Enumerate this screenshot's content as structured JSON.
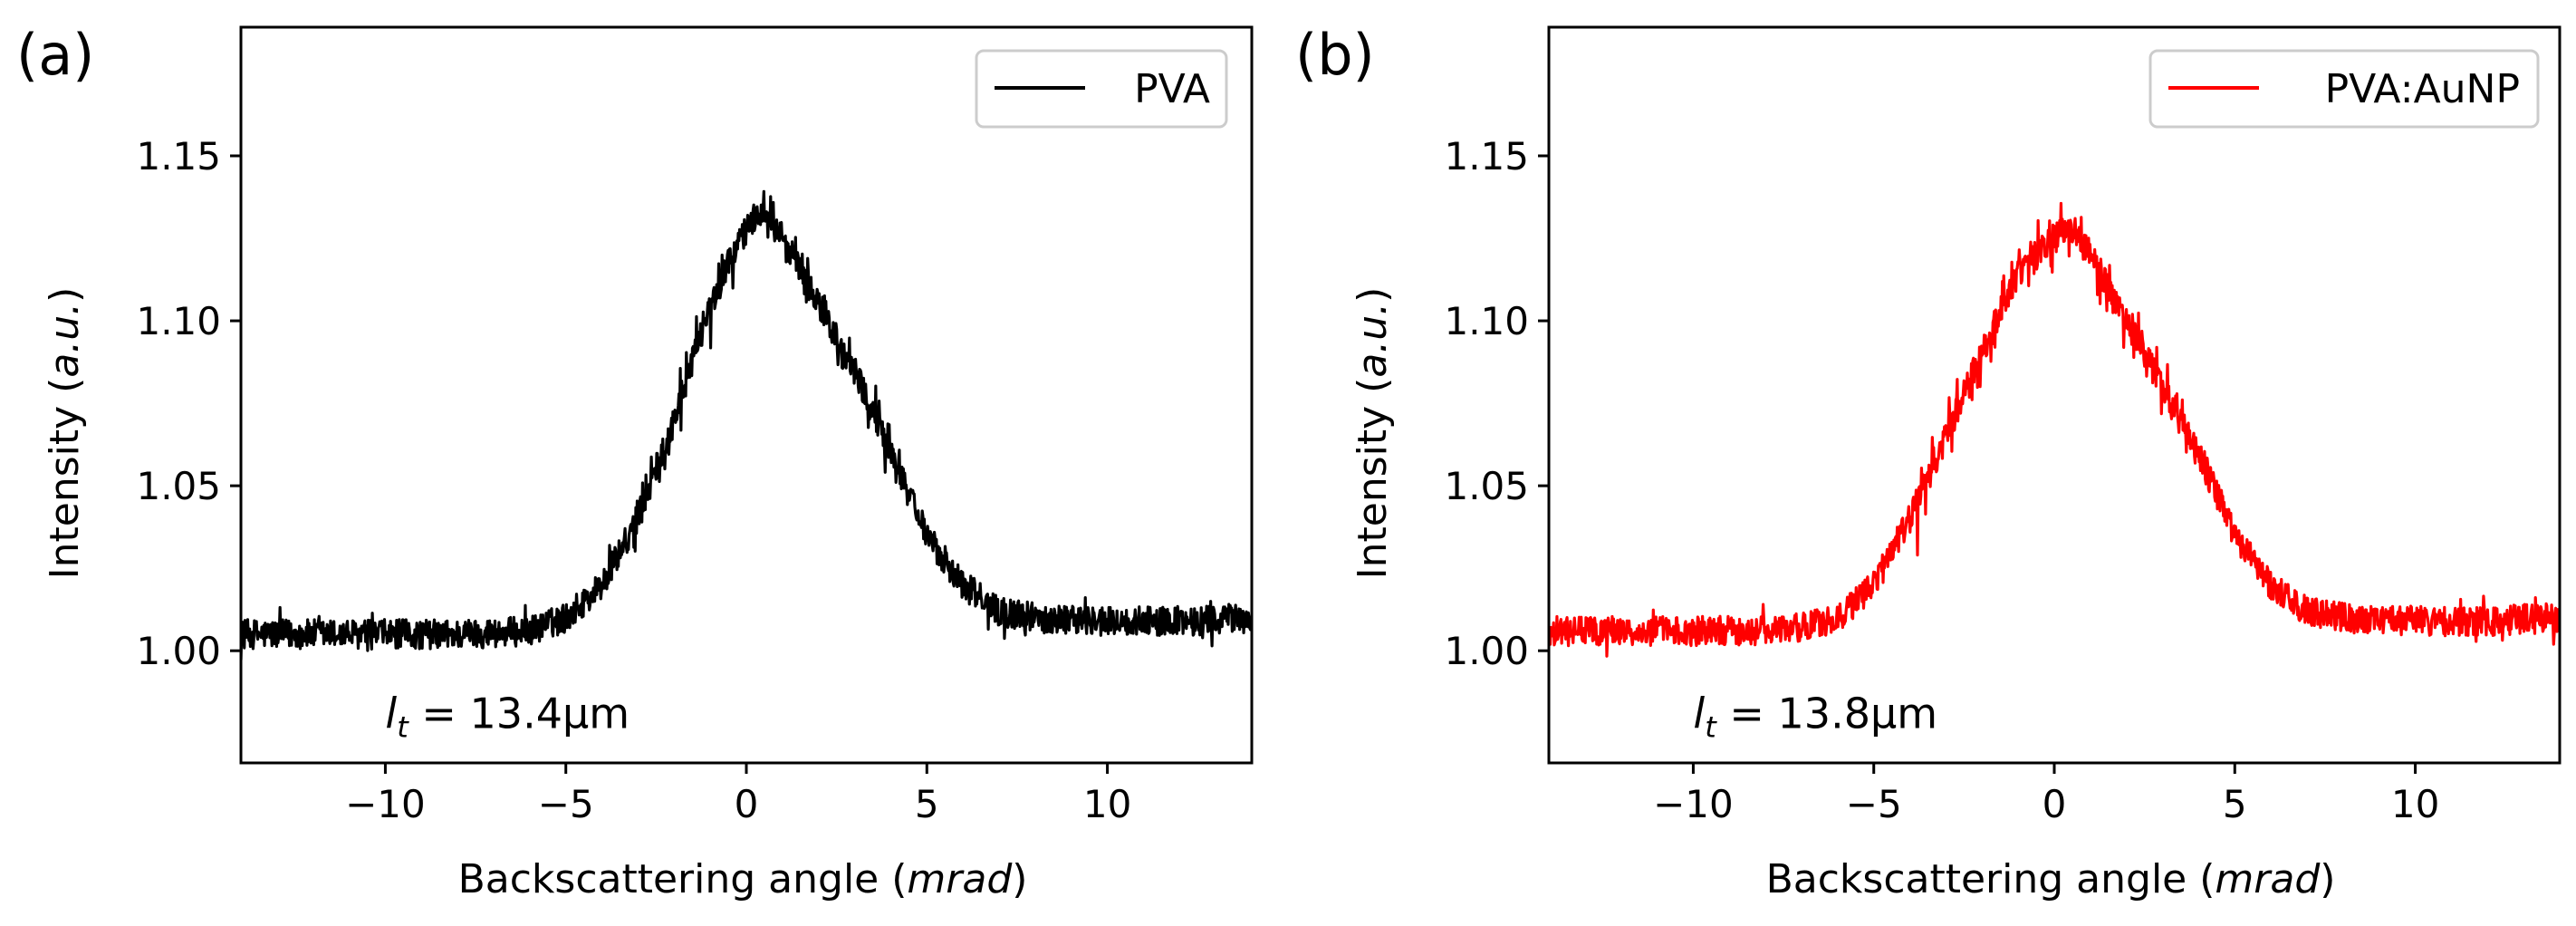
{
  "figure": {
    "panels": [
      "(a)",
      "(b)"
    ]
  },
  "chart_data": [
    {
      "type": "line",
      "panel_label": "(a)",
      "title": "",
      "xlabel_prefix": "Backscattering angle (",
      "xlabel_unit": "mrad",
      "xlabel_suffix": ")",
      "ylabel_prefix": "Intensity (",
      "ylabel_unit": "a.u.",
      "ylabel_suffix": ")",
      "xlim": [
        -14,
        14
      ],
      "ylim": [
        0.966,
        1.189
      ],
      "xticks": [
        -10,
        -5,
        0,
        5,
        10
      ],
      "xtick_labels": [
        "−10",
        "−5",
        "0",
        "5",
        "10"
      ],
      "yticks": [
        1.0,
        1.05,
        1.1,
        1.15
      ],
      "ytick_labels": [
        "1.00",
        "1.05",
        "1.10",
        "1.15"
      ],
      "legend": {
        "label": "PVA",
        "placement": "top-right"
      },
      "annotation": {
        "symbol": "l",
        "subscript": "t",
        "text": " = 13.4μm",
        "x": -10,
        "y": 0.981
      },
      "series": [
        {
          "name": "PVA",
          "color": "#000000",
          "model": {
            "baseline": 1.006,
            "left_floor": 1.005,
            "peak": 1.135,
            "center": 0.5,
            "sigma": 2.5,
            "plateau": 1.01,
            "noise": 0.0045,
            "samples": 1500
          },
          "x": [
            -14,
            -12,
            -10,
            -8,
            -6,
            -5,
            -4,
            -3,
            -2,
            -1,
            0,
            0.5,
            1,
            2,
            3,
            4,
            5,
            6,
            7,
            8,
            10,
            12,
            14
          ],
          "y": [
            1.005,
            1.005,
            1.005,
            1.005,
            1.006,
            1.01,
            1.02,
            1.04,
            1.07,
            1.105,
            1.128,
            1.135,
            1.125,
            1.105,
            1.085,
            1.06,
            1.035,
            1.02,
            1.012,
            1.01,
            1.009,
            1.009,
            1.01
          ]
        }
      ]
    },
    {
      "type": "line",
      "panel_label": "(b)",
      "title": "",
      "xlabel_prefix": "Backscattering angle (",
      "xlabel_unit": "mrad",
      "xlabel_suffix": ")",
      "ylabel_prefix": "Intensity (",
      "ylabel_unit": "a.u.",
      "ylabel_suffix": ")",
      "xlim": [
        -14,
        14
      ],
      "ylim": [
        0.966,
        1.189
      ],
      "xticks": [
        -10,
        -5,
        0,
        5,
        10
      ],
      "xtick_labels": [
        "−10",
        "−5",
        "0",
        "5",
        "10"
      ],
      "yticks": [
        1.0,
        1.05,
        1.1,
        1.15
      ],
      "ytick_labels": [
        "1.00",
        "1.05",
        "1.10",
        "1.15"
      ],
      "legend": {
        "label": "PVA:AuNP",
        "placement": "top-right"
      },
      "annotation": {
        "symbol": "l",
        "subscript": "t",
        "text": " = 13.8μm",
        "x": -10,
        "y": 0.981
      },
      "series": [
        {
          "name": "PVA:AuNP",
          "color": "#ff0000",
          "model": {
            "baseline": 1.006,
            "left_floor": 1.006,
            "peak": 1.128,
            "center": 0.0,
            "sigma": 2.6,
            "plateau": 1.01,
            "noise": 0.0045,
            "samples": 1500
          },
          "x": [
            -14,
            -12,
            -10,
            -8,
            -7,
            -6,
            -5,
            -4,
            -3,
            -2,
            -1,
            0,
            0.5,
            1,
            2,
            3,
            4,
            5,
            6,
            7,
            8,
            10,
            12,
            14
          ],
          "y": [
            1.006,
            1.006,
            1.006,
            1.006,
            1.007,
            1.01,
            1.02,
            1.04,
            1.065,
            1.09,
            1.115,
            1.125,
            1.128,
            1.12,
            1.1,
            1.08,
            1.06,
            1.035,
            1.02,
            1.012,
            1.01,
            1.009,
            1.009,
            1.01
          ]
        }
      ]
    }
  ]
}
